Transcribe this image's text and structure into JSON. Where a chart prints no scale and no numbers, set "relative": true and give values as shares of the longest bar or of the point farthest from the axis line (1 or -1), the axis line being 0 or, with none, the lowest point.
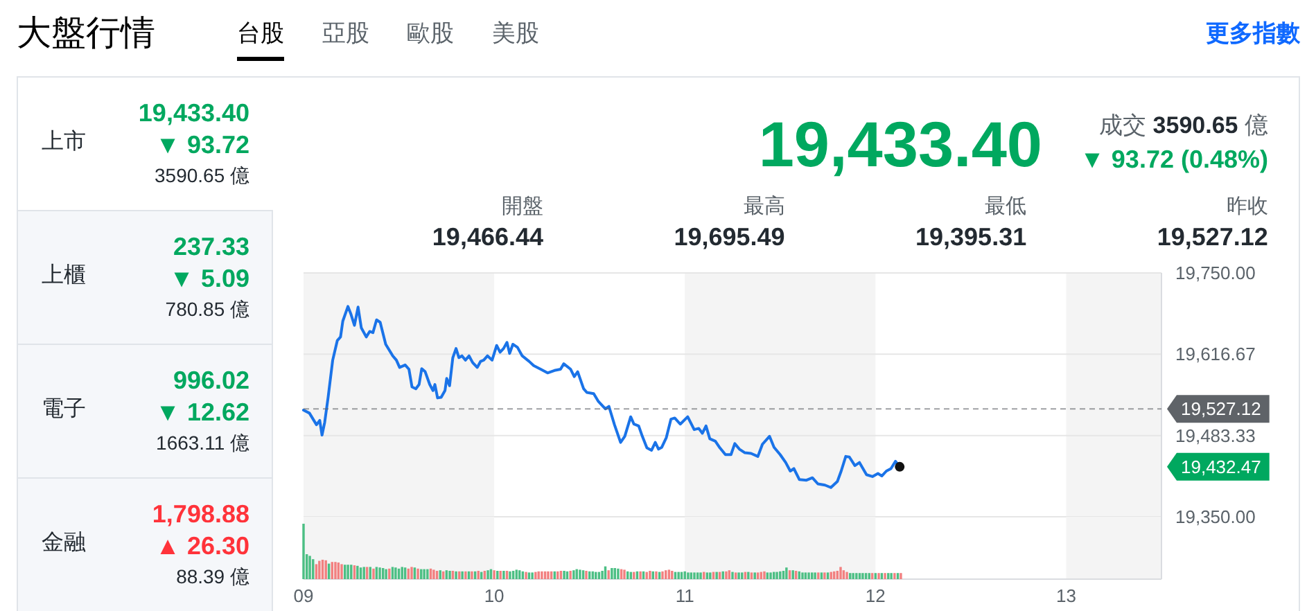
{
  "chart_data": [
    {
      "type": "other",
      "title": "大盤行情",
      "categories": [
        "台股",
        "亞股",
        "歐股",
        "美股"
      ],
      "annotations": [
        "更多指數"
      ]
    },
    {
      "type": "other",
      "categories": [
        "上市",
        "上櫃",
        "電子",
        "金融"
      ],
      "colors": [
        "#00a85f",
        "#00a85f",
        "#00a85f",
        "#ff333a"
      ],
      "series": [
        {
          "values": [
            19433.4,
            237.33,
            996.02,
            1798.88
          ],
          "value_labels": [
            "19,433.40",
            "237.33",
            "996.02",
            "1,798.88"
          ]
        },
        {
          "values": [
            93.72,
            5.09,
            12.62,
            26.3
          ],
          "value_labels": [
            "▼ 93.72",
            "▼ 5.09",
            "▼ 12.62",
            "▲ 26.30"
          ]
        },
        {
          "values": [
            3590.65,
            780.85,
            1663.11,
            88.39
          ],
          "value_labels": [
            "3590.65 億",
            "780.85 億",
            "1663.11 億",
            "88.39 億"
          ]
        }
      ]
    },
    {
      "type": "other",
      "categories": [
        "成交"
      ],
      "series": [
        {
          "color": "#00a85f",
          "values": [
            19433.4
          ],
          "value_labels": [
            "19,433.40"
          ]
        },
        {
          "color": "#00a85f",
          "values": [
            93.72
          ],
          "value_labels": [
            "▼ 93.72 (0.48%)"
          ]
        },
        {
          "color": "#232a31",
          "values": [
            3590.65
          ],
          "value_labels": [
            "3590.65"
          ]
        }
      ],
      "annotations": [
        "億"
      ]
    },
    {
      "type": "other",
      "categories": [
        "開盤",
        "最高",
        "最低",
        "昨收"
      ],
      "values": [
        19466.44,
        19695.49,
        19395.31,
        19527.12
      ],
      "value_labels": [
        "19,466.44",
        "19,695.49",
        "19,395.31",
        "19,527.12"
      ]
    },
    {
      "type": "line",
      "xlim": [
        9,
        13.5
      ],
      "ylim": [
        19350,
        19750
      ],
      "yticks": [
        {
          "value": 19350,
          "label": "19,350.00"
        },
        {
          "value": 19483.33,
          "label": "19,483.33"
        },
        {
          "value": 19616.67,
          "label": "19,616.67"
        },
        {
          "value": 19750,
          "label": "19,750.00"
        }
      ],
      "tick_labels": "y",
      "grid": "y",
      "bands": [
        {
          "axis": "x",
          "from": 9,
          "to": 10,
          "color": "#f4f4f4"
        },
        {
          "axis": "x",
          "from": 11,
          "to": 12,
          "color": "#f4f4f4"
        },
        {
          "axis": "x",
          "from": 13,
          "to": 13.5,
          "color": "#f4f4f4"
        }
      ],
      "ref_lines": [
        {
          "axis": "y",
          "value": 19527.12,
          "label": "19,527.12",
          "color": "#5f6368",
          "line_style": "dashed"
        }
      ],
      "annotations": [
        "19,432.47"
      ],
      "series": [
        {
          "color": "#1a73e8",
          "x": [
            9,
            9.031,
            9.068,
            9.085,
            9.097,
            9.111,
            9.129,
            9.153,
            9.177,
            9.194,
            9.206,
            9.233,
            9.249,
            9.267,
            9.286,
            9.303,
            9.329,
            9.347,
            9.364,
            9.383,
            9.402,
            9.431,
            9.468,
            9.487,
            9.504,
            9.533,
            9.553,
            9.569,
            9.589,
            9.606,
            9.62,
            9.638,
            9.662,
            9.679,
            9.689,
            9.703,
            9.722,
            9.742,
            9.751,
            9.766,
            9.783,
            9.8,
            9.815,
            9.831,
            9.849,
            9.868,
            9.887,
            9.911,
            9.929,
            9.945,
            9.965,
            9.989,
            10.013,
            10.031,
            10.049,
            10.067,
            10.081,
            10.098,
            10.122,
            10.147,
            10.183,
            10.207,
            10.244,
            10.28,
            10.316,
            10.348,
            10.365,
            10.401,
            10.42,
            10.438,
            10.469,
            10.486,
            10.522,
            10.547,
            10.583,
            10.602,
            10.631,
            10.663,
            10.685,
            10.716,
            10.733,
            10.758,
            10.777,
            10.801,
            10.825,
            10.845,
            10.862,
            10.879,
            10.903,
            10.927,
            10.947,
            10.976,
            11.015,
            11.049,
            11.073,
            11.092,
            11.111,
            11.131,
            11.16,
            11.184,
            11.213,
            11.242,
            11.262,
            11.286,
            11.315,
            11.347,
            11.383,
            11.407,
            11.444,
            11.468,
            11.5,
            11.529,
            11.553,
            11.572,
            11.601,
            11.638,
            11.669,
            11.698,
            11.735,
            11.766,
            11.8,
            11.82,
            11.844,
            11.863,
            11.892,
            11.916,
            11.953,
            11.984,
            12.013,
            12.033,
            12.057,
            12.081,
            12.105,
            12.127
          ],
          "values": [
            19525,
            19520,
            19501,
            19508,
            19484,
            19505,
            19546,
            19607,
            19639,
            19645,
            19671,
            19695,
            19682,
            19664,
            19694,
            19660,
            19645,
            19654,
            19652,
            19673,
            19669,
            19633,
            19614,
            19607,
            19595,
            19599,
            19592,
            19563,
            19560,
            19567,
            19593,
            19588,
            19567,
            19557,
            19567,
            19545,
            19546,
            19557,
            19577,
            19565,
            19611,
            19626,
            19611,
            19614,
            19607,
            19614,
            19603,
            19595,
            19605,
            19607,
            19614,
            19607,
            19631,
            19620,
            19626,
            19636,
            19618,
            19633,
            19628,
            19614,
            19605,
            19598,
            19592,
            19586,
            19590,
            19592,
            19601,
            19592,
            19580,
            19588,
            19560,
            19554,
            19552,
            19539,
            19527,
            19531,
            19501,
            19472,
            19482,
            19514,
            19502,
            19499,
            19482,
            19463,
            19459,
            19472,
            19461,
            19464,
            19480,
            19510,
            19512,
            19502,
            19514,
            19493,
            19495,
            19487,
            19499,
            19478,
            19474,
            19463,
            19452,
            19452,
            19470,
            19461,
            19455,
            19454,
            19449,
            19469,
            19482,
            19464,
            19452,
            19439,
            19425,
            19429,
            19411,
            19410,
            19414,
            19404,
            19402,
            19398,
            19408,
            19425,
            19449,
            19448,
            19434,
            19439,
            19419,
            19416,
            19421,
            19417,
            19425,
            19429,
            19441,
            19432
          ]
        }
      ]
    },
    {
      "type": "bar",
      "relative": true,
      "xlim": [
        9,
        13.5
      ],
      "xticks": [
        {
          "value": 9,
          "label": "09"
        },
        10,
        11,
        12,
        13
      ],
      "tick_labels": "x",
      "bands": [
        {
          "axis": "x",
          "from": 9,
          "to": 10,
          "color": "#f4f4f4"
        },
        {
          "axis": "x",
          "from": 11,
          "to": 12,
          "color": "#f4f4f4"
        },
        {
          "axis": "x",
          "from": 13,
          "to": 13.5,
          "color": "#f4f4f4"
        }
      ],
      "x": [
        9,
        9.017,
        9.033,
        9.05,
        9.067,
        9.083,
        9.1,
        9.117,
        9.133,
        9.15,
        9.167,
        9.183,
        9.2,
        9.217,
        9.233,
        9.25,
        9.267,
        9.283,
        9.3,
        9.317,
        9.333,
        9.35,
        9.367,
        9.383,
        9.4,
        9.417,
        9.433,
        9.45,
        9.467,
        9.483,
        9.5,
        9.517,
        9.533,
        9.55,
        9.567,
        9.583,
        9.6,
        9.617,
        9.633,
        9.65,
        9.667,
        9.683,
        9.7,
        9.717,
        9.733,
        9.75,
        9.767,
        9.783,
        9.8,
        9.817,
        9.833,
        9.85,
        9.867,
        9.883,
        9.9,
        9.917,
        9.933,
        9.95,
        9.967,
        9.983,
        10,
        10.017,
        10.033,
        10.05,
        10.067,
        10.083,
        10.1,
        10.117,
        10.133,
        10.15,
        10.167,
        10.183,
        10.2,
        10.217,
        10.233,
        10.25,
        10.267,
        10.283,
        10.3,
        10.317,
        10.333,
        10.35,
        10.367,
        10.383,
        10.4,
        10.417,
        10.433,
        10.45,
        10.467,
        10.483,
        10.5,
        10.517,
        10.533,
        10.55,
        10.567,
        10.583,
        10.6,
        10.617,
        10.633,
        10.65,
        10.667,
        10.683,
        10.7,
        10.717,
        10.733,
        10.75,
        10.767,
        10.783,
        10.8,
        10.817,
        10.833,
        10.85,
        10.867,
        10.883,
        10.9,
        10.917,
        10.933,
        10.95,
        10.967,
        10.983,
        11,
        11.017,
        11.033,
        11.05,
        11.067,
        11.083,
        11.1,
        11.117,
        11.133,
        11.15,
        11.167,
        11.183,
        11.2,
        11.217,
        11.233,
        11.25,
        11.267,
        11.283,
        11.3,
        11.317,
        11.333,
        11.35,
        11.367,
        11.383,
        11.4,
        11.417,
        11.433,
        11.45,
        11.467,
        11.483,
        11.5,
        11.517,
        11.533,
        11.55,
        11.567,
        11.583,
        11.6,
        11.617,
        11.633,
        11.65,
        11.667,
        11.683,
        11.7,
        11.717,
        11.733,
        11.75,
        11.767,
        11.783,
        11.8,
        11.817,
        11.833,
        11.85,
        11.867,
        11.883,
        11.9,
        11.917,
        11.933,
        11.95,
        11.967,
        11.983,
        12,
        12.017,
        12.033,
        12.05,
        12.067,
        12.083,
        12.1,
        12.117,
        12.133
      ],
      "values": [
        1,
        0.45,
        0.42,
        0.36,
        0.27,
        0.33,
        0.35,
        0.34,
        0.28,
        0.31,
        0.31,
        0.3,
        0.27,
        0.26,
        0.26,
        0.26,
        0.25,
        0.24,
        0.21,
        0.22,
        0.22,
        0.22,
        0.19,
        0.22,
        0.21,
        0.2,
        0.18,
        0.19,
        0.22,
        0.21,
        0.19,
        0.22,
        0.21,
        0.19,
        0.22,
        0.21,
        0.19,
        0.18,
        0.18,
        0.18,
        0.19,
        0.17,
        0.15,
        0.16,
        0.14,
        0.16,
        0.15,
        0.15,
        0.14,
        0.14,
        0.14,
        0.14,
        0.14,
        0.14,
        0.14,
        0.15,
        0.13,
        0.15,
        0.16,
        0.18,
        0.16,
        0.15,
        0.15,
        0.15,
        0.15,
        0.14,
        0.15,
        0.17,
        0.16,
        0.14,
        0.13,
        0.12,
        0.12,
        0.13,
        0.14,
        0.14,
        0.14,
        0.14,
        0.14,
        0.14,
        0.14,
        0.15,
        0.15,
        0.14,
        0.15,
        0.16,
        0.18,
        0.17,
        0.16,
        0.15,
        0.14,
        0.14,
        0.13,
        0.13,
        0.15,
        0.23,
        0.16,
        0.2,
        0.2,
        0.19,
        0.18,
        0.17,
        0.14,
        0.13,
        0.13,
        0.14,
        0.14,
        0.14,
        0.13,
        0.15,
        0.14,
        0.14,
        0.13,
        0.14,
        0.16,
        0.17,
        0.15,
        0.13,
        0.13,
        0.13,
        0.14,
        0.12,
        0.12,
        0.12,
        0.12,
        0.12,
        0.13,
        0.12,
        0.12,
        0.13,
        0.13,
        0.13,
        0.14,
        0.14,
        0.16,
        0.13,
        0.12,
        0.12,
        0.12,
        0.13,
        0.13,
        0.12,
        0.12,
        0.12,
        0.13,
        0.14,
        0.12,
        0.12,
        0.13,
        0.13,
        0.14,
        0.15,
        0.21,
        0.16,
        0.16,
        0.15,
        0.14,
        0.12,
        0.12,
        0.12,
        0.12,
        0.12,
        0.12,
        0.12,
        0.12,
        0.12,
        0.13,
        0.14,
        0.15,
        0.22,
        0.16,
        0.13,
        0.11,
        0.11,
        0.11,
        0.11,
        0.11,
        0.11,
        0.11,
        0.11,
        0.11,
        0.11,
        0.11,
        0.11,
        0.11,
        0.11,
        0.11,
        0.11,
        0.11
      ],
      "colors": [
        "#4cbf84",
        "#4cbf84",
        "#4cbf84",
        "#4cbf84",
        "#f28080",
        "#f28080",
        "#f28080",
        "#f28080",
        "#4cbf84",
        "#f28080",
        "#f28080",
        "#f28080",
        "#f28080",
        "#4cbf84",
        "#4cbf84",
        "#4cbf84",
        "#f28080",
        "#4cbf84",
        "#4cbf84",
        "#4cbf84",
        "#f28080",
        "#4cbf84",
        "#f28080",
        "#4cbf84",
        "#4cbf84",
        "#4cbf84",
        "#4cbf84",
        "#f28080",
        "#4cbf84",
        "#4cbf84",
        "#4cbf84",
        "#4cbf84",
        "#4cbf84",
        "#f28080",
        "#f28080",
        "#4cbf84",
        "#f28080",
        "#4cbf84",
        "#4cbf84",
        "#4cbf84",
        "#f28080",
        "#f28080",
        "#f28080",
        "#4cbf84",
        "#f28080",
        "#4cbf84",
        "#4cbf84",
        "#f28080",
        "#4cbf84",
        "#f28080",
        "#4cbf84",
        "#f28080",
        "#4cbf84",
        "#f28080",
        "#4cbf84",
        "#f28080",
        "#4cbf84",
        "#f28080",
        "#4cbf84",
        "#4cbf84",
        "#f28080",
        "#4cbf84",
        "#f28080",
        "#4cbf84",
        "#f28080",
        "#4cbf84",
        "#4cbf84",
        "#4cbf84",
        "#4cbf84",
        "#4cbf84",
        "#f28080",
        "#4cbf84",
        "#4cbf84",
        "#f28080",
        "#f28080",
        "#f28080",
        "#f28080",
        "#f28080",
        "#f28080",
        "#4cbf84",
        "#f28080",
        "#f28080",
        "#4cbf84",
        "#4cbf84",
        "#f28080",
        "#4cbf84",
        "#4cbf84",
        "#4cbf84",
        "#4cbf84",
        "#f28080",
        "#4cbf84",
        "#4cbf84",
        "#4cbf84",
        "#4cbf84",
        "#4cbf84",
        "#4cbf84",
        "#f28080",
        "#4cbf84",
        "#4cbf84",
        "#4cbf84",
        "#f28080",
        "#f28080",
        "#4cbf84",
        "#4cbf84",
        "#f28080",
        "#4cbf84",
        "#f28080",
        "#4cbf84",
        "#f28080",
        "#f28080",
        "#4cbf84",
        "#f28080",
        "#4cbf84",
        "#f28080",
        "#f28080",
        "#f28080",
        "#f28080",
        "#4cbf84",
        "#4cbf84",
        "#4cbf84",
        "#4cbf84",
        "#4cbf84",
        "#4cbf84",
        "#4cbf84",
        "#4cbf84",
        "#4cbf84",
        "#f28080",
        "#4cbf84",
        "#4cbf84",
        "#f28080",
        "#4cbf84",
        "#f28080",
        "#4cbf84",
        "#f28080",
        "#f28080",
        "#4cbf84",
        "#f28080",
        "#4cbf84",
        "#4cbf84",
        "#f28080",
        "#4cbf84",
        "#f28080",
        "#4cbf84",
        "#f28080",
        "#f28080",
        "#f28080",
        "#4cbf84",
        "#4cbf84",
        "#4cbf84",
        "#4cbf84",
        "#4cbf84",
        "#4cbf84",
        "#4cbf84",
        "#f28080",
        "#4cbf84",
        "#f28080",
        "#4cbf84",
        "#4cbf84",
        "#4cbf84",
        "#4cbf84",
        "#4cbf84",
        "#4cbf84",
        "#f28080",
        "#4cbf84",
        "#f28080",
        "#4cbf84",
        "#f28080",
        "#f28080",
        "#f28080",
        "#f28080",
        "#f28080",
        "#f28080",
        "#4cbf84",
        "#4cbf84",
        "#4cbf84",
        "#4cbf84",
        "#4cbf84",
        "#4cbf84",
        "#4cbf84",
        "#f28080",
        "#4cbf84",
        "#f28080",
        "#4cbf84",
        "#f28080",
        "#4cbf84",
        "#4cbf84",
        "#f28080",
        "#4cbf84",
        "#f28080"
      ]
    }
  ]
}
